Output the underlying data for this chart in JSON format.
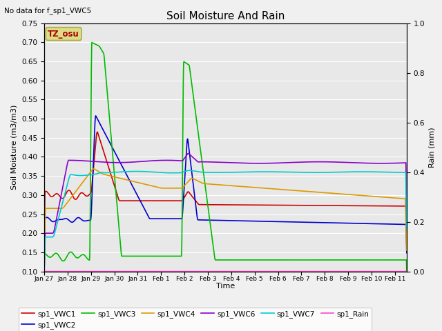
{
  "title": "Soil Moisture And Rain",
  "ylabel_left": "Soil Moisture (m3/m3)",
  "ylabel_right": "Rain (mm)",
  "xlabel": "Time",
  "top_left_text": "No data for f_sp1_VWC5",
  "annotation_text": "TZ_osu",
  "ylim_left": [
    0.1,
    0.75
  ],
  "ylim_right": [
    0.0,
    1.0
  ],
  "xlim": [
    0,
    15.5
  ],
  "yticks_left": [
    0.1,
    0.15,
    0.2,
    0.25,
    0.3,
    0.35,
    0.4,
    0.45,
    0.5,
    0.55,
    0.6,
    0.65,
    0.7,
    0.75
  ],
  "yticks_right": [
    0.0,
    0.2,
    0.4,
    0.6,
    0.8,
    1.0
  ],
  "xtick_labels": [
    "Jan 27",
    "Jan 28",
    "Jan 29",
    "Jan 30",
    "Jan 31",
    "Feb 1",
    "Feb 2",
    "Feb 3",
    "Feb 4",
    "Feb 5",
    "Feb 6",
    "Feb 7",
    "Feb 8",
    "Feb 9",
    "Feb 10",
    "Feb 11"
  ],
  "colors": {
    "VWC1": "#cc0000",
    "VWC2": "#0000cc",
    "VWC3": "#00bb00",
    "VWC4": "#dd9900",
    "VWC6": "#8800cc",
    "VWC7": "#00cccc",
    "Rain": "#ff44cc"
  },
  "legend_entries": [
    "sp1_VWC1",
    "sp1_VWC2",
    "sp1_VWC3",
    "sp1_VWC4",
    "sp1_VWC6",
    "sp1_VWC7",
    "sp1_Rain"
  ],
  "bg_color": "#e8e8e8",
  "grid_color": "#ffffff",
  "annotation_fg": "#aa0000",
  "annotation_bg": "#dddd88",
  "annotation_border": "#aaaa44",
  "fig_bg": "#f0f0f0"
}
